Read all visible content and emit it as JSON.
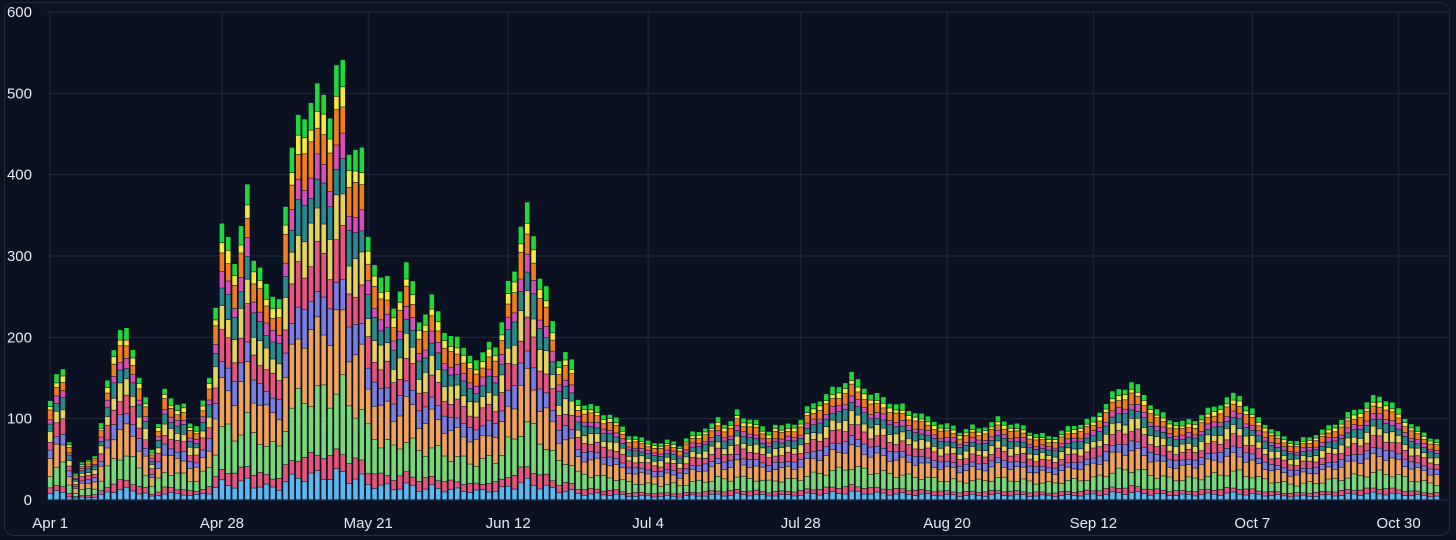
{
  "chart_data": {
    "type": "bar",
    "stacked": true,
    "title": "",
    "xlabel": "",
    "ylabel": "",
    "ylim": [
      0,
      600
    ],
    "y_ticks": [
      0,
      100,
      200,
      300,
      400,
      500,
      600
    ],
    "grid": true,
    "legend": "none",
    "x_tick_labels": [
      {
        "label": "Apr 1",
        "index": 0
      },
      {
        "label": "Apr 28",
        "index": 27
      },
      {
        "label": "May 21",
        "index": 50
      },
      {
        "label": "Jun 12",
        "index": 72
      },
      {
        "label": "Jul 4",
        "index": 94
      },
      {
        "label": "Jul 28",
        "index": 118
      },
      {
        "label": "Aug 20",
        "index": 141
      },
      {
        "label": "Sep 12",
        "index": 164
      },
      {
        "label": "Oct 7",
        "index": 189
      },
      {
        "label": "Oct 30",
        "index": 212
      }
    ],
    "colors": [
      "#5cb8f2",
      "#e9557a",
      "#78d878",
      "#f0a25a",
      "#7b7ee0",
      "#e8557c",
      "#e5d35d",
      "#2b8a8a",
      "#d94fb8",
      "#f27d1e",
      "#f4ea3c",
      "#1ed83c"
    ],
    "weights": [
      0.06,
      0.05,
      0.15,
      0.16,
      0.08,
      0.1,
      0.09,
      0.08,
      0.05,
      0.08,
      0.04,
      0.06
    ],
    "daily_totals": [
      122,
      150,
      162,
      73,
      32,
      45,
      50,
      55,
      92,
      145,
      190,
      210,
      205,
      185,
      155,
      125,
      60,
      95,
      140,
      122,
      115,
      122,
      95,
      88,
      122,
      155,
      235,
      330,
      328,
      298,
      330,
      380,
      302,
      290,
      258,
      248,
      255,
      360,
      420,
      478,
      482,
      480,
      500,
      510,
      478,
      520,
      535,
      438,
      432,
      420,
      325,
      298,
      270,
      268,
      240,
      262,
      285,
      265,
      225,
      230,
      245,
      232,
      212,
      200,
      195,
      190,
      182,
      168,
      178,
      200,
      190,
      212,
      268,
      290,
      335,
      355,
      328,
      280,
      258,
      215,
      175,
      185,
      168,
      122,
      120,
      118,
      112,
      105,
      108,
      100,
      88,
      80,
      80,
      75,
      72,
      72,
      70,
      72,
      72,
      68,
      75,
      82,
      85,
      90,
      92,
      100,
      95,
      98,
      108,
      100,
      102,
      98,
      88,
      85,
      95,
      90,
      92,
      95,
      100,
      112,
      118,
      125,
      130,
      135,
      140,
      148,
      155,
      145,
      140,
      132,
      128,
      125,
      122,
      118,
      115,
      110,
      110,
      105,
      100,
      98,
      95,
      92,
      90,
      85,
      88,
      90,
      88,
      92,
      95,
      100,
      98,
      95,
      92,
      90,
      85,
      82,
      80,
      78,
      80,
      85,
      88,
      92,
      95,
      98,
      100,
      110,
      120,
      130,
      135,
      140,
      145,
      138,
      130,
      120,
      110,
      105,
      100,
      98,
      95,
      98,
      100,
      105,
      110,
      115,
      120,
      125,
      128,
      130,
      118,
      110,
      100,
      95,
      88,
      82,
      78,
      75,
      72,
      75,
      78,
      82,
      85,
      90,
      95,
      100,
      105,
      110,
      115,
      120,
      125,
      128,
      125,
      118,
      110,
      102,
      95,
      88,
      82,
      78,
      75
    ]
  }
}
